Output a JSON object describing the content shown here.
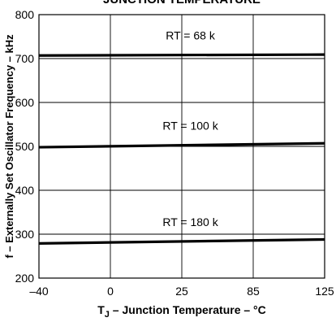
{
  "chart_data": {
    "type": "line",
    "title": "JUNCTION TEMPERATURE",
    "xlabel_main": "T",
    "xlabel_sub": "J",
    "xlabel_rest": " – Junction Temperature – °C",
    "ylabel": "f – Externally Set Oscillator Frequency – kHz",
    "x_ticks": [
      "–40",
      "0",
      "25",
      "85",
      "125"
    ],
    "y_ticks": [
      200,
      300,
      400,
      500,
      600,
      700,
      800
    ],
    "ylim": [
      200,
      800
    ],
    "grid": true,
    "series": [
      {
        "name": "RT = 68 k",
        "x": [
          "–40",
          "125"
        ],
        "values": [
          707,
          709
        ]
      },
      {
        "name": "RT = 100 k",
        "x": [
          "–40",
          "125"
        ],
        "values": [
          498,
          507
        ]
      },
      {
        "name": "RT = 180 k",
        "x": [
          "–40",
          "125"
        ],
        "values": [
          279,
          288
        ]
      }
    ]
  }
}
